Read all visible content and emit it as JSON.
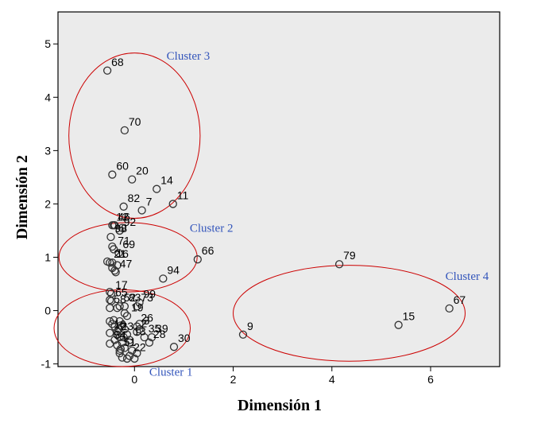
{
  "chart_data": {
    "type": "scatter",
    "xlabel": "Dimensión 1",
    "ylabel": "Dimensión 2",
    "xlim": [
      -1.55,
      7.4
    ],
    "ylim": [
      -1.05,
      5.6
    ],
    "x_ticks": [
      "0",
      "2",
      "4",
      "6"
    ],
    "x_tick_values": [
      0,
      2,
      4,
      6
    ],
    "y_ticks": [
      "-1",
      "0",
      "1",
      "2",
      "3",
      "4",
      "5"
    ],
    "y_tick_values": [
      -1,
      0,
      1,
      2,
      3,
      4,
      5
    ],
    "grid": false,
    "plot_background": "#ebebeb",
    "marker_color": "#333333",
    "ellipse_color": "#cc0000",
    "cluster_label_color": "#3355bb",
    "labeled_points": [
      {
        "label": "68",
        "x": -0.55,
        "y": 4.5
      },
      {
        "label": "70",
        "x": -0.2,
        "y": 3.38
      },
      {
        "label": "60",
        "x": -0.45,
        "y": 2.55
      },
      {
        "label": "20",
        "x": -0.05,
        "y": 2.46
      },
      {
        "label": "14",
        "x": 0.45,
        "y": 2.28
      },
      {
        "label": "82",
        "x": -0.22,
        "y": 1.95
      },
      {
        "label": "7",
        "x": 0.15,
        "y": 1.88
      },
      {
        "label": "11",
        "x": 0.78,
        "y": 2.0
      },
      {
        "label": "12",
        "x": -0.45,
        "y": 1.6
      },
      {
        "label": "46",
        "x": -0.42,
        "y": 1.6
      },
      {
        "label": "92",
        "x": -0.3,
        "y": 1.5
      },
      {
        "label": "98",
        "x": -0.48,
        "y": 1.38
      },
      {
        "label": "71",
        "x": -0.42,
        "y": 1.15
      },
      {
        "label": "69",
        "x": -0.32,
        "y": 1.08
      },
      {
        "label": "16",
        "x": -0.45,
        "y": 0.9
      },
      {
        "label": "21",
        "x": -0.5,
        "y": 0.9
      },
      {
        "label": "47",
        "x": -0.38,
        "y": 0.72
      },
      {
        "label": "94",
        "x": 0.58,
        "y": 0.6
      },
      {
        "label": "66",
        "x": 1.28,
        "y": 0.96
      },
      {
        "label": "17",
        "x": -0.47,
        "y": 0.32
      },
      {
        "label": "65",
        "x": -0.47,
        "y": 0.18
      },
      {
        "label": "99",
        "x": 0.1,
        "y": 0.15
      },
      {
        "label": "58",
        "x": -0.5,
        "y": 0.05
      },
      {
        "label": "52",
        "x": -0.3,
        "y": 0.08
      },
      {
        "label": "83",
        "x": -0.2,
        "y": 0.08
      },
      {
        "label": "73",
        "x": 0.05,
        "y": 0.08
      },
      {
        "label": "19",
        "x": -0.15,
        "y": -0.1
      },
      {
        "label": "26",
        "x": 0.05,
        "y": -0.3
      },
      {
        "label": "3",
        "x": 0.1,
        "y": -0.35
      },
      {
        "label": "2",
        "x": 0.05,
        "y": -0.4
      },
      {
        "label": "39",
        "x": 0.35,
        "y": -0.5
      },
      {
        "label": "10",
        "x": -0.5,
        "y": -0.42
      },
      {
        "label": "23",
        "x": -0.35,
        "y": -0.45
      },
      {
        "label": "13",
        "x": -0.1,
        "y": -0.55
      },
      {
        "label": "35",
        "x": 0.2,
        "y": -0.5
      },
      {
        "label": "28",
        "x": 0.3,
        "y": -0.6
      },
      {
        "label": "54",
        "x": -0.5,
        "y": -0.62
      },
      {
        "label": "51",
        "x": -0.3,
        "y": -0.75
      },
      {
        "label": "22",
        "x": -0.1,
        "y": -0.85
      },
      {
        "label": "30",
        "x": 0.8,
        "y": -0.68
      },
      {
        "label": "9",
        "x": 2.2,
        "y": -0.45
      },
      {
        "label": "79",
        "x": 4.15,
        "y": 0.87
      },
      {
        "label": "15",
        "x": 5.35,
        "y": -0.27
      },
      {
        "label": "67",
        "x": 6.38,
        "y": 0.04
      }
    ],
    "unlabeled_points": [
      {
        "x": -0.25,
        "y": 1.55
      },
      {
        "x": -0.4,
        "y": 1.6
      },
      {
        "x": -0.3,
        "y": 1.5
      },
      {
        "x": -0.45,
        "y": 1.2
      },
      {
        "x": -0.4,
        "y": 0.75
      },
      {
        "x": -0.55,
        "y": 0.92
      },
      {
        "x": -0.35,
        "y": 0.85
      },
      {
        "x": -0.45,
        "y": 0.8
      },
      {
        "x": -0.5,
        "y": 0.35
      },
      {
        "x": -0.5,
        "y": 0.2
      },
      {
        "x": -0.35,
        "y": 0.05
      },
      {
        "x": -0.2,
        "y": -0.05
      },
      {
        "x": -0.5,
        "y": -0.2
      },
      {
        "x": -0.45,
        "y": -0.25
      },
      {
        "x": -0.4,
        "y": -0.3
      },
      {
        "x": -0.3,
        "y": -0.2
      },
      {
        "x": -0.25,
        "y": -0.3
      },
      {
        "x": -0.35,
        "y": -0.4
      },
      {
        "x": -0.2,
        "y": -0.35
      },
      {
        "x": -0.15,
        "y": -0.45
      },
      {
        "x": -0.3,
        "y": -0.5
      },
      {
        "x": -0.4,
        "y": -0.55
      },
      {
        "x": -0.25,
        "y": -0.6
      },
      {
        "x": -0.35,
        "y": -0.65
      },
      {
        "x": -0.2,
        "y": -0.7
      },
      {
        "x": -0.3,
        "y": -0.8
      },
      {
        "x": -0.25,
        "y": -0.88
      },
      {
        "x": -0.15,
        "y": -0.9
      },
      {
        "x": -0.05,
        "y": -0.75
      },
      {
        "x": 0.05,
        "y": -0.8
      },
      {
        "x": -0.28,
        "y": -0.28
      },
      {
        "x": -0.32,
        "y": -0.35
      },
      {
        "x": -0.22,
        "y": -0.5
      },
      {
        "x": -0.28,
        "y": -0.72
      },
      {
        "x": -0.42,
        "y": -0.18
      },
      {
        "x": 0.1,
        "y": -0.25
      },
      {
        "x": -0.1,
        "y": -0.6
      },
      {
        "x": 0.0,
        "y": -0.9
      }
    ],
    "clusters": [
      {
        "name": "Cluster 1",
        "cx": -0.25,
        "cy": -0.33,
        "rx": 1.38,
        "ry": 0.72
      },
      {
        "name": "Cluster 2",
        "cx": -0.13,
        "cy": 1.0,
        "rx": 1.4,
        "ry": 0.65
      },
      {
        "name": "Cluster 3",
        "cx": 0.0,
        "cy": 3.28,
        "rx": 1.33,
        "ry": 1.55
      },
      {
        "name": "Cluster 4",
        "cx": 4.35,
        "cy": -0.05,
        "rx": 2.35,
        "ry": 0.9
      }
    ]
  }
}
